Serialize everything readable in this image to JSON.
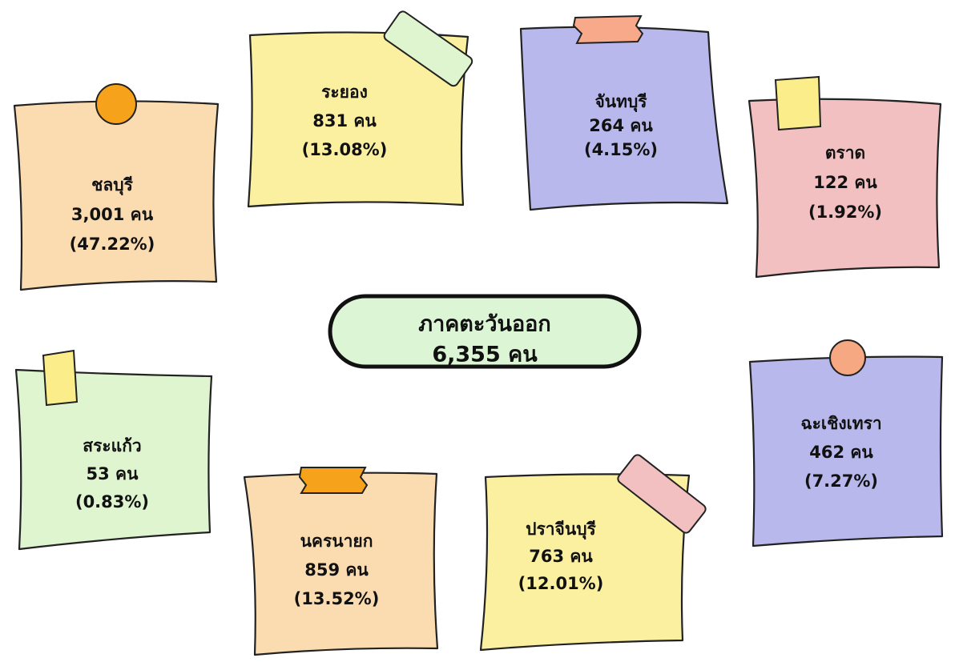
{
  "center": {
    "title": "ภาคตะวันออก",
    "total": "6,355 คน"
  },
  "nodes": [
    {
      "name": "ชลบุรี",
      "count": "3,001 คน",
      "share": "(47.22%)"
    },
    {
      "name": "ระยอง",
      "count": "831 คน",
      "share": "(13.08%)"
    },
    {
      "name": "จันทบุรี",
      "count": "264 คน",
      "share": "(4.15%)"
    },
    {
      "name": "ตราด",
      "count": "122 คน",
      "share": "(1.92%)"
    },
    {
      "name": "สระแก้ว",
      "count": "53 คน",
      "share": "(0.83%)"
    },
    {
      "name": "นครนายก",
      "count": "859 คน",
      "share": "(13.52%)"
    },
    {
      "name": "ปราจีนบุรี",
      "count": "763 คน",
      "share": "(12.01%)"
    },
    {
      "name": "ฉะเชิงเทรา",
      "count": "462 คน",
      "share": "(7.27%)"
    }
  ]
}
